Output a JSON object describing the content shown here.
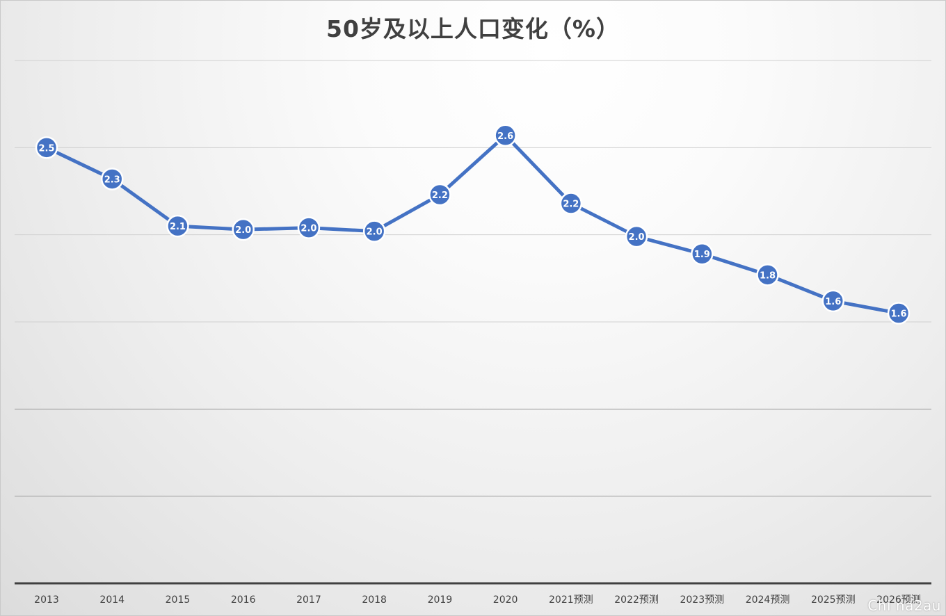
{
  "chart_data": {
    "type": "line",
    "title": "50岁及以上人口变化（%）",
    "xlabel": "",
    "ylabel": "",
    "categories": [
      "2013",
      "2014",
      "2015",
      "2016",
      "2017",
      "2018",
      "2019",
      "2020",
      "2021预测",
      "2022预测",
      "2023预测",
      "2024预测",
      "2025预测",
      "2026预测"
    ],
    "series": [
      {
        "values": [
          2.5,
          2.3,
          2.1,
          2.0,
          2.0,
          2.0,
          2.2,
          2.6,
          2.2,
          2.0,
          1.9,
          1.8,
          1.6,
          1.6
        ],
        "plot_values": [
          2.5,
          2.32,
          2.05,
          2.03,
          2.04,
          2.02,
          2.23,
          2.57,
          2.18,
          1.99,
          1.89,
          1.77,
          1.62,
          1.55
        ]
      }
    ],
    "ylim": [
      0,
      3.0
    ],
    "y_gridlines": [
      0.5,
      1.0,
      1.5,
      2.0,
      2.5,
      3.0
    ],
    "y_tick_labels_shown": false,
    "grid": true,
    "legend": "none",
    "colors": {
      "line": "#4472C4",
      "marker_fill": "#4472C4",
      "marker_stroke": "#ffffff",
      "label_text": "#ffffff",
      "gridline": "#d0d0d0",
      "axis": "#404040",
      "tick_text": "#404040",
      "title": "#404040"
    }
  },
  "watermark": "Chi na2au"
}
